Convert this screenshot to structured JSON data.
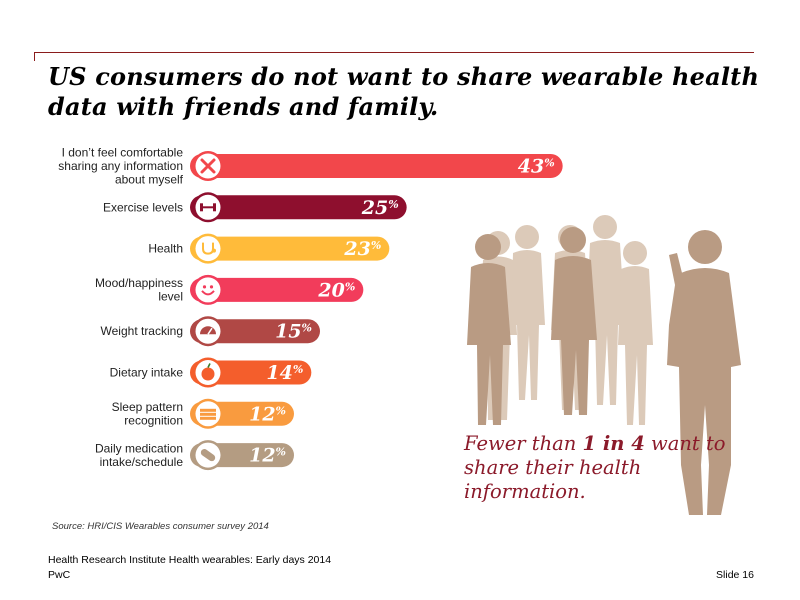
{
  "slide": {
    "title": "US consumers do not want to share wearable health data with friends and family.",
    "source": "Source: HRI/CIS Wearables consumer survey 2014",
    "footer": "Health Research Institute Health wearables: Early days 2014",
    "brand": "PwC",
    "slide_number": "Slide 16"
  },
  "callout": {
    "part1": "Fewer than ",
    "bold": "1 in 4",
    "part2": " want to share their health information."
  },
  "chart_data": {
    "type": "bar",
    "orientation": "horizontal",
    "categories": [
      [
        "I don’t feel comfortable",
        "sharing any information",
        "about myself"
      ],
      [
        "Exercise levels"
      ],
      [
        "Health"
      ],
      [
        "Mood/happiness",
        "level"
      ],
      [
        "Weight tracking"
      ],
      [
        "Dietary intake"
      ],
      [
        "Sleep pattern",
        "recognition"
      ],
      [
        "Daily medication",
        "intake/schedule"
      ]
    ],
    "values": [
      43,
      25,
      23,
      20,
      15,
      14,
      12,
      12
    ],
    "value_suffix": "%",
    "colors": [
      "#f2474b",
      "#8e0f2e",
      "#ffbb3a",
      "#f23c5b",
      "#b04845",
      "#f45e2c",
      "#f99b3f",
      "#b49c82"
    ],
    "icons": [
      "x-icon",
      "dumbbell-icon",
      "stethoscope-icon",
      "smiley-icon",
      "scale-icon",
      "apple-icon",
      "bed-icon",
      "pill-icon"
    ],
    "xlim": [
      0,
      45
    ],
    "grid": false,
    "legend": "none"
  },
  "palette": {
    "silhouette": "#b99b83",
    "silhouette_light": "#dccab9",
    "title": "#000000",
    "callout": "#8b1a2a",
    "rule": "#8a1c1c"
  }
}
